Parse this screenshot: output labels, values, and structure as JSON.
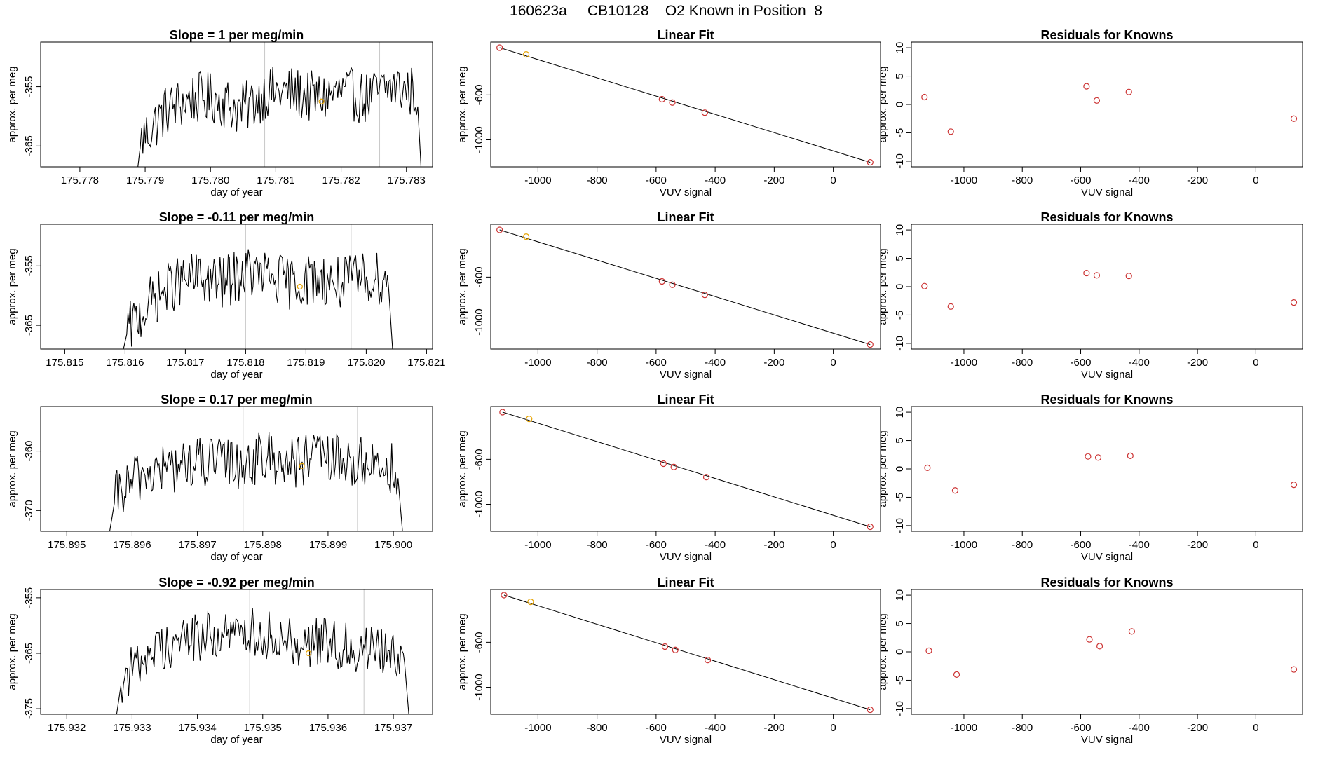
{
  "figure": {
    "title": "160623a     CB10128    O2 Known in Position  8"
  },
  "chart_data": [
    {
      "type": "line",
      "panel": "time-series",
      "row": 1,
      "title": "Slope =  1  per meg/min",
      "xlabel": "day of year",
      "ylabel": "approx. per meg",
      "xlim": [
        175.7774,
        175.7834
      ],
      "ylim": [
        -368.5,
        -347.5
      ],
      "xticks": [
        "175.778",
        "175.779",
        "175.780",
        "175.781",
        "175.782",
        "175.783"
      ],
      "xtick_values": [
        175.778,
        175.779,
        175.78,
        175.781,
        175.782,
        175.783
      ],
      "yticks": [
        "-355",
        "-365"
      ],
      "ytick_values": [
        -355,
        -365
      ],
      "x_start": 175.77885,
      "x_end": 175.78325,
      "series_start": -372,
      "series_end": -374,
      "series_levels": [
        -364,
        -359,
        -357,
        -357,
        -359,
        -356,
        -356,
        -357,
        -356,
        -357,
        -355,
        -356
      ],
      "series_range": [
        -369,
        -347
      ],
      "vlines": [
        175.78083,
        175.78259
      ],
      "marker": {
        "x": 175.7817,
        "y": -357.5
      },
      "color": "#000000",
      "marker_color": "#e6a300"
    },
    {
      "type": "scatter",
      "panel": "linear-fit",
      "row": 1,
      "title": "Linear Fit",
      "xlabel": "VUV signal",
      "ylabel": "approx. per meg",
      "xlim": [
        -1160,
        160
      ],
      "ylim": [
        -1240,
        -130
      ],
      "xticks": [
        "-1000",
        "-800",
        "-600",
        "-400",
        "-200",
        "0"
      ],
      "xtick_values": [
        -1000,
        -800,
        -600,
        -400,
        -200,
        0
      ],
      "yticks": [
        "-600",
        "-1000"
      ],
      "ytick_values": [
        -600,
        -1000
      ],
      "points": [
        [
          -1130,
          -180
        ],
        [
          -1040,
          -240
        ],
        [
          -580,
          -638
        ],
        [
          -545,
          -668
        ],
        [
          -435,
          -758
        ],
        [
          125,
          -1200
        ]
      ],
      "highlight_index": 1,
      "fit_line": [
        [
          -1130,
          -180
        ],
        [
          125,
          -1200
        ]
      ],
      "point_color": "#cc3333",
      "highlight_color": "#e6a300"
    },
    {
      "type": "scatter",
      "panel": "residuals",
      "row": 1,
      "title": "Residuals for Knowns",
      "xlabel": "VUV signal",
      "ylabel": "approx. per meg",
      "xlim": [
        -1180,
        160
      ],
      "ylim": [
        -11,
        11
      ],
      "xticks": [
        "-1000",
        "-800",
        "-600",
        "-400",
        "-200",
        "0"
      ],
      "xtick_values": [
        -1000,
        -800,
        -600,
        -400,
        -200,
        0
      ],
      "yticks": [
        "10",
        "5",
        "0",
        "-5",
        "-10"
      ],
      "ytick_values": [
        10,
        5,
        0,
        -5,
        -10
      ],
      "points": [
        [
          -1135,
          1.3
        ],
        [
          -1045,
          -4.8
        ],
        [
          -580,
          3.2
        ],
        [
          -545,
          0.7
        ],
        [
          -435,
          2.2
        ],
        [
          130,
          -2.5
        ]
      ],
      "point_color": "#cc3333"
    },
    {
      "type": "line",
      "panel": "time-series",
      "row": 2,
      "title": "Slope =  -0.11  per meg/min",
      "xlabel": "day of year",
      "ylabel": "approx. per meg",
      "xlim": [
        175.8146,
        175.8211
      ],
      "ylim": [
        -369,
        -348
      ],
      "xticks": [
        "175.815",
        "175.816",
        "175.817",
        "175.818",
        "175.819",
        "175.820",
        "175.821"
      ],
      "xtick_values": [
        175.815,
        175.816,
        175.817,
        175.818,
        175.819,
        175.82,
        175.821
      ],
      "yticks": [
        "-355",
        "-365"
      ],
      "ytick_values": [
        -355,
        -365
      ],
      "x_start": 175.81595,
      "x_end": 175.82045,
      "series_start": -370,
      "series_end": -371,
      "series_levels": [
        -366,
        -361,
        -358,
        -357,
        -358,
        -356,
        -357,
        -358,
        -357,
        -358,
        -357,
        -357
      ],
      "series_range": [
        -370,
        -348
      ],
      "vlines": [
        175.818,
        175.81975
      ],
      "marker": {
        "x": 175.8189,
        "y": -358.5
      },
      "color": "#000000",
      "marker_color": "#e6a300"
    },
    {
      "type": "scatter",
      "panel": "linear-fit",
      "row": 2,
      "title": "Linear Fit",
      "xlabel": "VUV signal",
      "ylabel": "approx. per meg",
      "xlim": [
        -1160,
        160
      ],
      "ylim": [
        -1240,
        -130
      ],
      "xticks": [
        "-1000",
        "-800",
        "-600",
        "-400",
        "-200",
        "0"
      ],
      "xtick_values": [
        -1000,
        -800,
        -600,
        -400,
        -200,
        0
      ],
      "yticks": [
        "-600",
        "-1000"
      ],
      "ytick_values": [
        -600,
        -1000
      ],
      "points": [
        [
          -1130,
          -180
        ],
        [
          -1040,
          -240
        ],
        [
          -580,
          -638
        ],
        [
          -545,
          -668
        ],
        [
          -435,
          -758
        ],
        [
          125,
          -1200
        ]
      ],
      "highlight_index": 1,
      "fit_line": [
        [
          -1130,
          -180
        ],
        [
          125,
          -1200
        ]
      ],
      "point_color": "#cc3333",
      "highlight_color": "#e6a300"
    },
    {
      "type": "scatter",
      "panel": "residuals",
      "row": 2,
      "title": "Residuals for Knowns",
      "xlabel": "VUV signal",
      "ylabel": "approx. per meg",
      "xlim": [
        -1180,
        160
      ],
      "ylim": [
        -11,
        11
      ],
      "xticks": [
        "-1000",
        "-800",
        "-600",
        "-400",
        "-200",
        "0"
      ],
      "xtick_values": [
        -1000,
        -800,
        -600,
        -400,
        -200,
        0
      ],
      "yticks": [
        "10",
        "5",
        "0",
        "-5",
        "-10"
      ],
      "ytick_values": [
        10,
        5,
        0,
        -5,
        -10
      ],
      "points": [
        [
          -1135,
          0.1
        ],
        [
          -1045,
          -3.5
        ],
        [
          -580,
          2.4
        ],
        [
          -545,
          2.0
        ],
        [
          -435,
          1.9
        ],
        [
          130,
          -2.8
        ]
      ],
      "point_color": "#cc3333"
    },
    {
      "type": "line",
      "panel": "time-series",
      "row": 3,
      "title": "Slope =  0.17  per meg/min",
      "xlabel": "day of year",
      "ylabel": "approx. per meg",
      "xlim": [
        175.8946,
        175.9006
      ],
      "ylim": [
        -373.5,
        -352.5
      ],
      "xticks": [
        "175.895",
        "175.896",
        "175.897",
        "175.898",
        "175.899",
        "175.900"
      ],
      "xtick_values": [
        175.895,
        175.896,
        175.897,
        175.898,
        175.899,
        175.9
      ],
      "yticks": [
        "-360",
        "-370"
      ],
      "ytick_values": [
        -360,
        -370
      ],
      "x_start": 175.89565,
      "x_end": 175.90015,
      "series_start": -374,
      "series_end": -375,
      "series_levels": [
        -368,
        -364,
        -363,
        -362,
        -362,
        -362,
        -361,
        -362,
        -361,
        -362,
        -362,
        -363
      ],
      "series_range": [
        -374,
        -353
      ],
      "vlines": [
        175.8977,
        175.89945
      ],
      "marker": {
        "x": 175.8986,
        "y": -362.5
      },
      "color": "#000000",
      "marker_color": "#e6a300"
    },
    {
      "type": "scatter",
      "panel": "linear-fit",
      "row": 3,
      "title": "Linear Fit",
      "xlabel": "VUV signal",
      "ylabel": "approx. per meg",
      "xlim": [
        -1160,
        160
      ],
      "ylim": [
        -1240,
        -130
      ],
      "xticks": [
        "-1000",
        "-800",
        "-600",
        "-400",
        "-200",
        "0"
      ],
      "xtick_values": [
        -1000,
        -800,
        -600,
        -400,
        -200,
        0
      ],
      "yticks": [
        "-600",
        "-1000"
      ],
      "ytick_values": [
        -600,
        -1000
      ],
      "points": [
        [
          -1120,
          -180
        ],
        [
          -1030,
          -240
        ],
        [
          -575,
          -638
        ],
        [
          -540,
          -668
        ],
        [
          -430,
          -758
        ],
        [
          125,
          -1200
        ]
      ],
      "highlight_index": 1,
      "fit_line": [
        [
          -1120,
          -180
        ],
        [
          125,
          -1200
        ]
      ],
      "point_color": "#cc3333",
      "highlight_color": "#e6a300"
    },
    {
      "type": "scatter",
      "panel": "residuals",
      "row": 3,
      "title": "Residuals for Knowns",
      "xlabel": "VUV signal",
      "ylabel": "approx. per meg",
      "xlim": [
        -1180,
        160
      ],
      "ylim": [
        -11,
        11
      ],
      "xticks": [
        "-1000",
        "-800",
        "-600",
        "-400",
        "-200",
        "0"
      ],
      "xtick_values": [
        -1000,
        -800,
        -600,
        -400,
        -200,
        0
      ],
      "yticks": [
        "10",
        "5",
        "0",
        "-5",
        "-10"
      ],
      "ytick_values": [
        10,
        5,
        0,
        -5,
        -10
      ],
      "points": [
        [
          -1125,
          0.2
        ],
        [
          -1030,
          -3.8
        ],
        [
          -575,
          2.2
        ],
        [
          -540,
          2.0
        ],
        [
          -430,
          2.3
        ],
        [
          130,
          -2.8
        ]
      ],
      "point_color": "#cc3333"
    },
    {
      "type": "line",
      "panel": "time-series",
      "row": 4,
      "title": "Slope =  -0.92  per meg/min",
      "xlabel": "day of year",
      "ylabel": "approx. per meg",
      "xlim": [
        175.9316,
        175.9376
      ],
      "ylim": [
        -376,
        -353.5
      ],
      "xticks": [
        "175.932",
        "175.933",
        "175.934",
        "175.935",
        "175.936",
        "175.937"
      ],
      "xtick_values": [
        175.932,
        175.933,
        175.934,
        175.935,
        175.936,
        175.937
      ],
      "yticks": [
        "-355",
        "-365",
        "-375"
      ],
      "ytick_values": [
        -355,
        -365,
        -375
      ],
      "x_start": 175.93275,
      "x_end": 175.93725,
      "series_start": -377,
      "series_end": -378,
      "series_levels": [
        -370,
        -365,
        -363,
        -362,
        -362,
        -361,
        -362,
        -363,
        -363,
        -364,
        -364,
        -365
      ],
      "series_range": [
        -376,
        -354
      ],
      "vlines": [
        175.9348,
        175.93655
      ],
      "marker": {
        "x": 175.9357,
        "y": -365
      },
      "color": "#000000",
      "marker_color": "#e6a300"
    },
    {
      "type": "scatter",
      "panel": "linear-fit",
      "row": 4,
      "title": "Linear Fit",
      "xlabel": "VUV signal",
      "ylabel": "approx. per meg",
      "xlim": [
        -1160,
        160
      ],
      "ylim": [
        -1240,
        -130
      ],
      "xticks": [
        "-1000",
        "-800",
        "-600",
        "-400",
        "-200",
        "0"
      ],
      "xtick_values": [
        -1000,
        -800,
        -600,
        -400,
        -200,
        0
      ],
      "yticks": [
        "-600",
        "-1000"
      ],
      "ytick_values": [
        -600,
        -1000
      ],
      "points": [
        [
          -1115,
          -180
        ],
        [
          -1025,
          -240
        ],
        [
          -570,
          -638
        ],
        [
          -535,
          -668
        ],
        [
          -425,
          -758
        ],
        [
          125,
          -1200
        ]
      ],
      "highlight_index": 1,
      "fit_line": [
        [
          -1115,
          -180
        ],
        [
          125,
          -1200
        ]
      ],
      "point_color": "#cc3333",
      "highlight_color": "#e6a300"
    },
    {
      "type": "scatter",
      "panel": "residuals",
      "row": 4,
      "title": "Residuals for Knowns",
      "xlabel": "VUV signal",
      "ylabel": "approx. per meg",
      "xlim": [
        -1180,
        160
      ],
      "ylim": [
        -11,
        11
      ],
      "xticks": [
        "-1000",
        "-800",
        "-600",
        "-400",
        "-200",
        "0"
      ],
      "xtick_values": [
        -1000,
        -800,
        -600,
        -400,
        -200,
        0
      ],
      "yticks": [
        "10",
        "5",
        "0",
        "-5",
        "-10"
      ],
      "ytick_values": [
        10,
        5,
        0,
        -5,
        -10
      ],
      "points": [
        [
          -1120,
          0.2
        ],
        [
          -1025,
          -4.0
        ],
        [
          -570,
          2.2
        ],
        [
          -535,
          1.0
        ],
        [
          -425,
          3.6
        ],
        [
          130,
          -3.1
        ]
      ],
      "point_color": "#cc3333"
    }
  ]
}
